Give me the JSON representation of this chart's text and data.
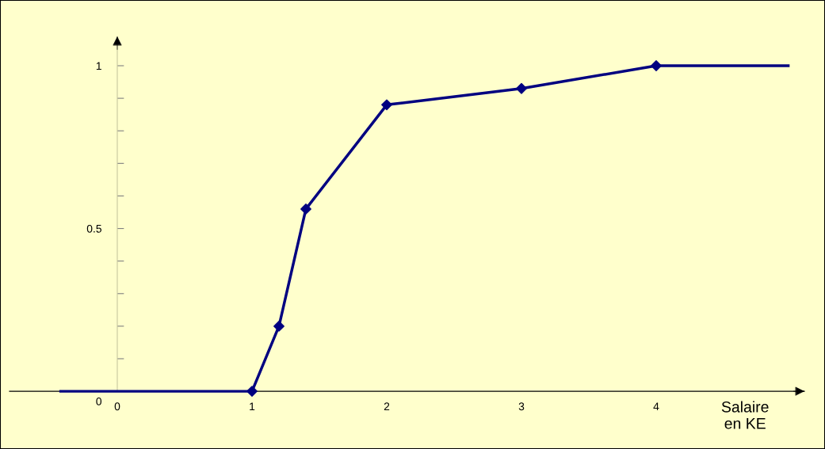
{
  "chart_data": {
    "type": "line",
    "xlabel": "Salaire\nen KE",
    "xlim": [
      -0.8,
      5.1
    ],
    "ylim": [
      -0.17,
      1.09
    ],
    "xticks": [
      0,
      1,
      2,
      3,
      4
    ],
    "yticks": [
      0,
      {
        "value": 0.1,
        "label": null
      },
      {
        "value": 0.2,
        "label": null
      },
      {
        "value": 0.3,
        "label": null
      },
      {
        "value": 0.4,
        "label": null
      },
      0.5,
      {
        "value": 0.6,
        "label": null
      },
      {
        "value": 0.7,
        "label": null
      },
      {
        "value": 0.8,
        "label": null
      },
      {
        "value": 0.9,
        "label": null
      },
      1
    ],
    "grid": false,
    "series": [
      {
        "color": "#000080",
        "marker": "none",
        "line_style": "solid",
        "x": [
          -0.42,
          1,
          1.2,
          1.4,
          2,
          3,
          4,
          4.98
        ],
        "values": [
          0,
          0,
          0.2,
          0.56,
          0.88,
          0.93,
          1,
          1
        ]
      },
      {
        "type": "scatter",
        "color": "#000080",
        "marker": "diamond",
        "x": [
          1,
          1.2,
          1.4,
          2,
          3,
          4
        ],
        "values": [
          0,
          0.2,
          0.56,
          0.88,
          0.93,
          1
        ]
      }
    ]
  }
}
